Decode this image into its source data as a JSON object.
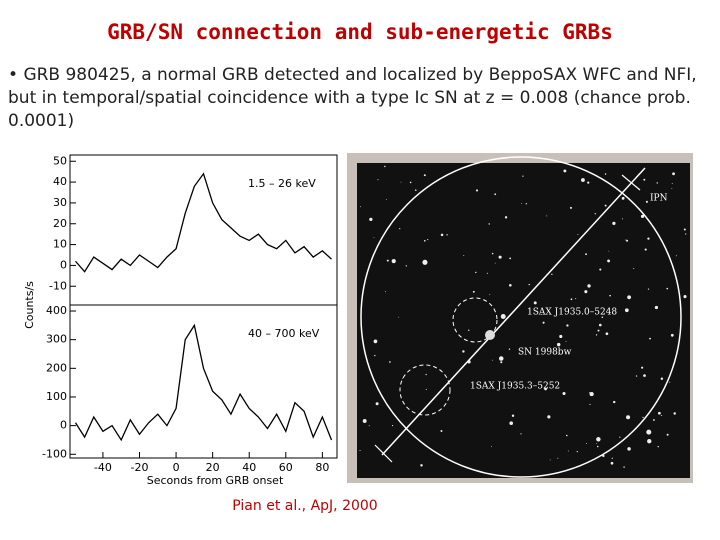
{
  "title": "GRB/SN connection and sub-energetic GRBs",
  "bullet": "GRB 980425, a normal GRB detected and localized by BeppoSAX WFC and NFI, but in temporal/spatial coincidence with a type Ic SN at z = 0.008 (chance prob. 0.0001)",
  "chart_data": [
    {
      "type": "line",
      "annotation": "1.5 – 26 keV",
      "ylabel": "Counts/s",
      "color": "#000000",
      "x": [
        -55,
        -50,
        -45,
        -40,
        -35,
        -30,
        -25,
        -20,
        -15,
        -10,
        -5,
        0,
        5,
        10,
        15,
        20,
        25,
        30,
        35,
        40,
        45,
        50,
        55,
        60,
        65,
        70,
        75,
        80,
        85
      ],
      "values": [
        2,
        -3,
        4,
        1,
        -2,
        3,
        0,
        5,
        2,
        -1,
        4,
        8,
        25,
        38,
        44,
        30,
        22,
        18,
        14,
        12,
        15,
        10,
        8,
        12,
        6,
        9,
        4,
        7,
        3
      ],
      "xlim": [
        -58,
        88
      ],
      "ylim": [
        -19,
        53
      ],
      "yticks": [
        -10,
        0,
        10,
        20,
        30,
        40,
        50
      ]
    },
    {
      "type": "line",
      "annotation": "40 – 700 keV",
      "xlabel": "Seconds from GRB onset",
      "color": "#000000",
      "x": [
        -55,
        -50,
        -45,
        -40,
        -35,
        -30,
        -25,
        -20,
        -15,
        -10,
        -5,
        0,
        5,
        10,
        15,
        20,
        25,
        30,
        35,
        40,
        45,
        50,
        55,
        60,
        65,
        70,
        75,
        80,
        85
      ],
      "values": [
        10,
        -40,
        30,
        -20,
        0,
        -50,
        20,
        -30,
        10,
        40,
        0,
        60,
        300,
        350,
        200,
        120,
        90,
        40,
        110,
        60,
        30,
        -10,
        40,
        -20,
        80,
        50,
        -40,
        30,
        -50
      ],
      "xlim": [
        -58,
        88
      ],
      "xticks": [
        -40,
        -20,
        0,
        20,
        40,
        60,
        80
      ],
      "ylim": [
        -113,
        421
      ],
      "yticks": [
        -100,
        0,
        100,
        200,
        300,
        400
      ]
    }
  ],
  "sky_image": {
    "labels": [
      "IPN",
      "1SAX J1935.0–5248",
      "SN 1998bw",
      "1SAX J1935.3–5252"
    ]
  },
  "credit": "Pian et al., ApJ, 2000"
}
